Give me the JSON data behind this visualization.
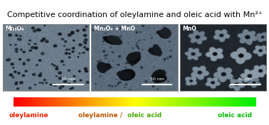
{
  "title": "Competitive coordination of oleylamine and oleic acid with Mn²⁺",
  "title_fontsize": 8.0,
  "panel_labels": [
    "Mn₃O₄",
    "Mn₃O₄ + MnO",
    "MnO"
  ],
  "scale_bar_text": "50 nm",
  "left_label": "oleylamine",
  "mid_label_left": "oleylamine /",
  "mid_label_right": " oleic acid",
  "right_label": "oleic acid",
  "left_label_color": "#ee2200",
  "mid_label_color_left": "#bb5500",
  "mid_label_color_right": "#44aa00",
  "right_label_color": "#00bb00",
  "background_color": "#ffffff",
  "figure_width": 3.78,
  "figure_height": 1.76,
  "dpi": 100
}
